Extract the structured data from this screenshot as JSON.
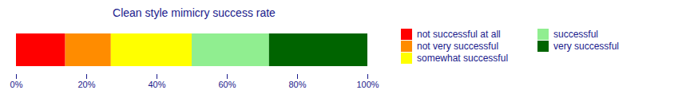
{
  "chart_data": {
    "type": "bar",
    "title": "Clean style mimicry success rate",
    "orientation": "horizontal",
    "stacked": true,
    "categories": [
      null
    ],
    "series": [
      {
        "name": "not successful at all",
        "color": "#ff0000",
        "values": [
          14
        ]
      },
      {
        "name": "not very successful",
        "color": "#ff8c00",
        "values": [
          13
        ]
      },
      {
        "name": "somewhat successful",
        "color": "#ffff00",
        "values": [
          23
        ]
      },
      {
        "name": "successful",
        "color": "#90ee90",
        "values": [
          22
        ]
      },
      {
        "name": "very successful",
        "color": "#006400",
        "values": [
          28
        ]
      }
    ],
    "xlim": [
      0,
      100
    ],
    "xticks": [
      {
        "value": 0,
        "label": "0%"
      },
      {
        "value": 20,
        "label": "20%"
      },
      {
        "value": 40,
        "label": "40%"
      },
      {
        "value": 60,
        "label": "60%"
      },
      {
        "value": 80,
        "label": "80%"
      },
      {
        "value": 100,
        "label": "100%"
      }
    ],
    "grid": false,
    "legend": "right",
    "tick_labels": "x"
  }
}
